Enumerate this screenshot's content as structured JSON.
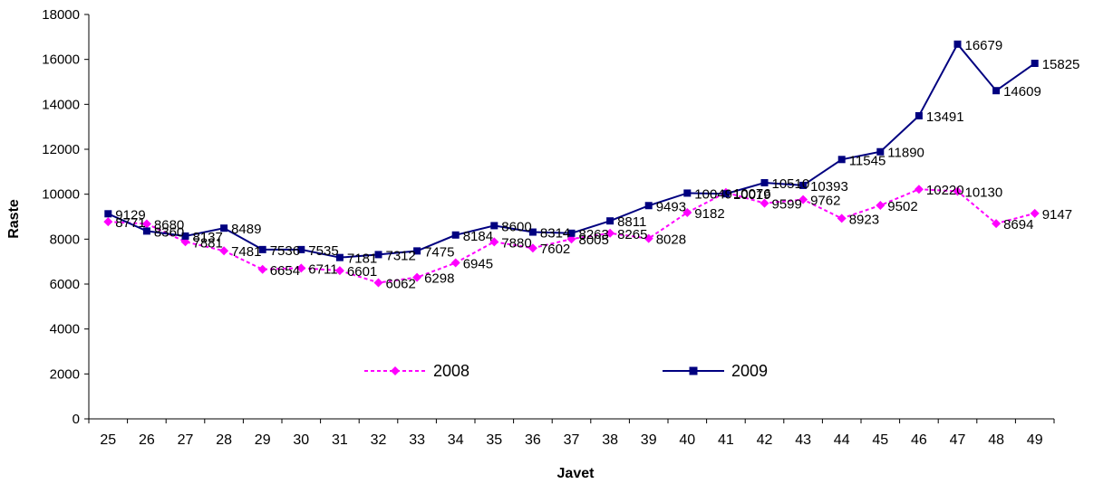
{
  "chart_data": {
    "type": "line",
    "xlabel": "Javet",
    "ylabel": "Raste",
    "categories": [
      "25",
      "26",
      "27",
      "28",
      "29",
      "30",
      "31",
      "32",
      "33",
      "34",
      "35",
      "36",
      "37",
      "38",
      "39",
      "40",
      "41",
      "42",
      "43",
      "44",
      "45",
      "46",
      "47",
      "48",
      "49"
    ],
    "ylim": [
      0,
      18000
    ],
    "yticks": [
      0,
      2000,
      4000,
      6000,
      8000,
      10000,
      12000,
      14000,
      16000,
      18000
    ],
    "grid": false,
    "legend_position": "bottom-center",
    "series": [
      {
        "name": "2008",
        "color": "#FF00FF",
        "line_style": "dashed",
        "marker": "diamond",
        "values": [
          8771,
          8680,
          7881,
          7481,
          6654,
          6711,
          6601,
          6062,
          6298,
          6945,
          7880,
          7602,
          8005,
          8265,
          8028,
          9182,
          10076,
          9599,
          9762,
          8923,
          9502,
          10220,
          10130,
          8694,
          9147
        ]
      },
      {
        "name": "2009",
        "color": "#000080",
        "line_style": "solid",
        "marker": "square",
        "values": [
          9129,
          8360,
          8137,
          8489,
          7536,
          7535,
          7181,
          7312,
          7475,
          8184,
          8600,
          8314,
          8263,
          8811,
          9493,
          10049,
          10019,
          10510,
          10393,
          11545,
          11890,
          13491,
          16679,
          14609,
          15825
        ]
      }
    ]
  }
}
